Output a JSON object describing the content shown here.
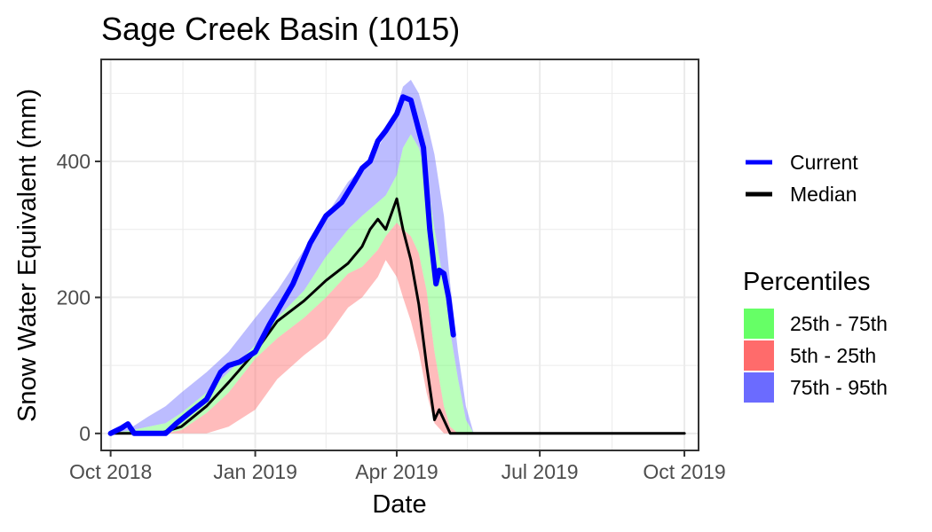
{
  "chart_data": {
    "type": "area",
    "title": "Sage Creek Basin (1015)",
    "xlabel": "Date",
    "ylabel": "Snow Water Equivalent (mm)",
    "xlim": [
      "2018-09-25",
      "2019-10-10"
    ],
    "ylim": [
      -25,
      550
    ],
    "x_ticks": [
      {
        "date": "2018-10-01",
        "label": "Oct 2018"
      },
      {
        "date": "2019-01-01",
        "label": "Jan 2019"
      },
      {
        "date": "2019-04-01",
        "label": "Apr 2019"
      },
      {
        "date": "2019-07-01",
        "label": "Jul 2019"
      },
      {
        "date": "2019-10-01",
        "label": "Oct 2019"
      }
    ],
    "y_ticks": [
      0,
      200,
      400
    ],
    "grid": true,
    "legend_position": "right",
    "legend_lines": [
      {
        "label": "Current",
        "color": "#0000ff"
      },
      {
        "label": "Median",
        "color": "#000000"
      }
    ],
    "legend_fill_title": "Percentiles",
    "legend_fills": [
      {
        "label": "25th - 75th",
        "color": "#66ff66"
      },
      {
        "label": "5th - 25th",
        "color": "#ff6b6b"
      },
      {
        "label": "75th - 95th",
        "color": "#6b6bff"
      }
    ],
    "bands": {
      "x": [
        "2018-10-01",
        "2018-10-15",
        "2018-10-25",
        "2018-11-05",
        "2018-11-15",
        "2018-12-01",
        "2018-12-15",
        "2019-01-01",
        "2019-01-15",
        "2019-02-01",
        "2019-02-15",
        "2019-03-01",
        "2019-03-10",
        "2019-03-20",
        "2019-03-25",
        "2019-04-01",
        "2019-04-05",
        "2019-04-10",
        "2019-04-15",
        "2019-04-20",
        "2019-04-25",
        "2019-05-01",
        "2019-05-05",
        "2019-05-10",
        "2019-05-15",
        "2019-05-20",
        "2019-05-25",
        "2019-06-01",
        "2019-06-15",
        "2019-07-01",
        "2019-08-01",
        "2019-09-01",
        "2019-10-01"
      ],
      "p5": [
        0,
        0,
        0,
        0,
        0,
        0,
        10,
        35,
        80,
        115,
        140,
        185,
        200,
        230,
        255,
        230,
        200,
        165,
        120,
        60,
        15,
        0,
        0,
        0,
        0,
        0,
        0,
        0,
        0,
        0,
        0,
        0,
        0
      ],
      "p25": [
        0,
        0,
        0,
        0,
        5,
        30,
        60,
        110,
        140,
        170,
        200,
        235,
        245,
        270,
        290,
        310,
        300,
        290,
        265,
        210,
        120,
        40,
        10,
        0,
        0,
        0,
        0,
        0,
        0,
        0,
        0,
        0,
        0
      ],
      "p75": [
        0,
        5,
        10,
        15,
        30,
        60,
        90,
        130,
        170,
        210,
        260,
        300,
        320,
        340,
        350,
        380,
        420,
        440,
        420,
        380,
        300,
        220,
        150,
        80,
        20,
        0,
        0,
        0,
        0,
        0,
        0,
        0,
        0
      ],
      "p95": [
        0,
        10,
        25,
        40,
        60,
        90,
        120,
        170,
        210,
        270,
        320,
        370,
        390,
        420,
        440,
        480,
        510,
        520,
        500,
        460,
        410,
        320,
        220,
        120,
        40,
        0,
        0,
        0,
        0,
        0,
        0,
        0,
        0
      ]
    },
    "series": [
      {
        "name": "Current",
        "color": "#0000ff",
        "x": [
          "2018-10-01",
          "2018-10-08",
          "2018-10-12",
          "2018-10-16",
          "2018-10-20",
          "2018-11-05",
          "2018-11-12",
          "2018-11-20",
          "2018-12-01",
          "2018-12-10",
          "2018-12-15",
          "2018-12-22",
          "2019-01-01",
          "2019-01-10",
          "2019-01-15",
          "2019-01-25",
          "2019-02-05",
          "2019-02-10",
          "2019-02-15",
          "2019-02-25",
          "2019-03-05",
          "2019-03-10",
          "2019-03-15",
          "2019-03-20",
          "2019-03-25",
          "2019-04-01",
          "2019-04-05",
          "2019-04-10",
          "2019-04-14",
          "2019-04-18",
          "2019-04-22",
          "2019-04-26",
          "2019-04-28",
          "2019-05-01",
          "2019-05-04",
          "2019-05-07"
        ],
        "y": [
          0,
          8,
          14,
          0,
          0,
          0,
          15,
          30,
          50,
          90,
          100,
          105,
          120,
          160,
          180,
          220,
          280,
          300,
          320,
          340,
          370,
          390,
          400,
          430,
          445,
          470,
          495,
          490,
          455,
          420,
          300,
          220,
          240,
          235,
          200,
          145
        ]
      },
      {
        "name": "Median",
        "color": "#000000",
        "x": [
          "2018-10-01",
          "2018-10-15",
          "2018-11-01",
          "2018-11-15",
          "2018-12-01",
          "2018-12-15",
          "2019-01-01",
          "2019-01-15",
          "2019-02-01",
          "2019-02-15",
          "2019-03-01",
          "2019-03-10",
          "2019-03-15",
          "2019-03-20",
          "2019-03-25",
          "2019-04-01",
          "2019-04-05",
          "2019-04-10",
          "2019-04-15",
          "2019-04-20",
          "2019-04-25",
          "2019-04-28",
          "2019-05-01",
          "2019-05-05",
          "2019-06-01",
          "2019-07-01",
          "2019-08-01",
          "2019-09-01",
          "2019-10-01"
        ],
        "y": [
          0,
          0,
          0,
          10,
          40,
          75,
          120,
          165,
          195,
          225,
          250,
          275,
          300,
          315,
          300,
          345,
          300,
          255,
          190,
          100,
          20,
          35,
          20,
          0,
          0,
          0,
          0,
          0,
          0
        ]
      }
    ]
  }
}
